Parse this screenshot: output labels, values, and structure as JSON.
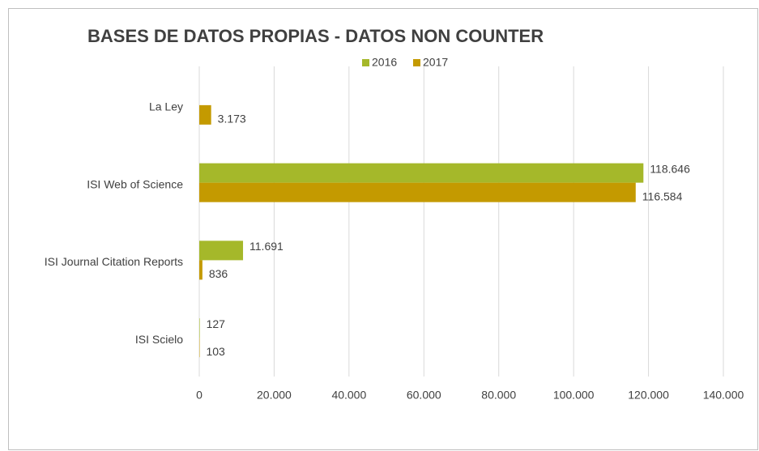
{
  "chart_data": {
    "type": "bar",
    "orientation": "horizontal",
    "title": "BASES DE DATOS PROPIAS - DATOS NON COUNTER",
    "categories": [
      "La Ley",
      "ISI Web of Science",
      "ISI Journal Citation Reports",
      "ISI Scielo"
    ],
    "series": [
      {
        "name": "2016",
        "color": "#a5b82a",
        "values": [
          null,
          118646,
          11691,
          127
        ],
        "value_labels": [
          null,
          "118.646",
          "11.691",
          "127"
        ]
      },
      {
        "name": "2017",
        "color": "#c49a00",
        "values": [
          3173,
          116584,
          836,
          103
        ],
        "value_labels": [
          "3.173",
          "116.584",
          "836",
          "103"
        ]
      }
    ],
    "xlim": [
      0,
      140000
    ],
    "xticks": [
      0,
      {
        "value": 20000,
        "label": "20.000"
      },
      {
        "value": 40000,
        "label": "40.000"
      },
      {
        "value": 60000,
        "label": "60.000"
      },
      {
        "value": 80000,
        "label": "80.000"
      },
      {
        "value": 100000,
        "label": "100.000"
      },
      {
        "value": 120000,
        "label": "120.000"
      },
      {
        "value": 140000,
        "label": "140.000"
      }
    ],
    "grid": true,
    "legend": "top"
  }
}
